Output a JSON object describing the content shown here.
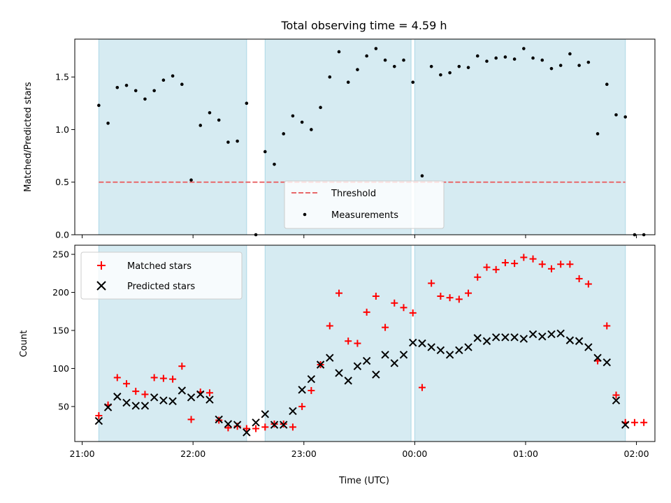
{
  "title": "Total observing time = 4.59 h",
  "colors": {
    "shade": "#add8e6",
    "threshold": "#e8686a",
    "measurements": "#000000",
    "matched": "#ff0000",
    "predicted": "#000000"
  },
  "shaded_intervals": [
    [
      "21:09",
      "22:29"
    ],
    [
      "22:39",
      "23:58"
    ],
    [
      "00:00",
      "01:54"
    ]
  ],
  "chart_data": [
    {
      "type": "scatter",
      "ylabel": "Matched/Predicted stars",
      "ylim": [
        0,
        1.86
      ],
      "yticks": [
        0.0,
        0.5,
        1.0,
        1.5
      ],
      "legend": {
        "placement": "lower-center",
        "entries": [
          "Threshold",
          "Measurements"
        ]
      },
      "threshold": {
        "name": "Threshold",
        "value": 0.5,
        "x_range": [
          "21:09",
          "01:54"
        ]
      },
      "series": [
        {
          "name": "Measurements",
          "x": [
            "21:09",
            "21:14",
            "21:19",
            "21:24",
            "21:29",
            "21:34",
            "21:39",
            "21:44",
            "21:49",
            "21:54",
            "21:59",
            "22:04",
            "22:09",
            "22:14",
            "22:19",
            "22:24",
            "22:29",
            "22:34",
            "22:39",
            "22:44",
            "22:49",
            "22:54",
            "22:59",
            "23:04",
            "23:09",
            "23:14",
            "23:19",
            "23:24",
            "23:29",
            "23:34",
            "23:39",
            "23:44",
            "23:49",
            "23:54",
            "23:59",
            "00:04",
            "00:09",
            "00:14",
            "00:19",
            "00:24",
            "00:29",
            "00:34",
            "00:39",
            "00:44",
            "00:49",
            "00:54",
            "00:59",
            "01:04",
            "01:09",
            "01:14",
            "01:19",
            "01:24",
            "01:29",
            "01:34",
            "01:39",
            "01:44",
            "01:49",
            "01:54",
            "01:59",
            "02:04"
          ],
          "y": [
            1.23,
            1.06,
            1.4,
            1.42,
            1.37,
            1.29,
            1.37,
            1.47,
            1.51,
            1.43,
            0.52,
            1.04,
            1.16,
            1.09,
            0.88,
            0.89,
            1.25,
            0.0,
            0.79,
            0.67,
            0.96,
            1.13,
            1.07,
            1.0,
            1.21,
            1.5,
            1.74,
            1.45,
            1.57,
            1.7,
            1.77,
            1.66,
            1.6,
            1.66,
            1.45,
            0.56,
            1.6,
            1.52,
            1.54,
            1.6,
            1.59,
            1.7,
            1.65,
            1.68,
            1.69,
            1.67,
            1.77,
            1.68,
            1.66,
            1.58,
            1.61,
            1.72,
            1.61,
            1.64,
            0.96,
            1.43,
            1.14,
            1.12,
            0.0,
            0.0
          ]
        }
      ]
    },
    {
      "type": "scatter",
      "xlabel": "Time (UTC)",
      "ylabel": "Count",
      "ylim": [
        4,
        262
      ],
      "yticks": [
        50,
        100,
        150,
        200,
        250
      ],
      "xlim": [
        "20:56",
        "02:10"
      ],
      "xticks": [
        "21:00",
        "22:00",
        "23:00",
        "00:00",
        "01:00",
        "02:00"
      ],
      "legend": {
        "placement": "upper-left",
        "entries": [
          "Matched stars",
          "Predicted stars"
        ]
      },
      "series": [
        {
          "name": "Matched stars",
          "marker": "+",
          "x": [
            "21:09",
            "21:14",
            "21:19",
            "21:24",
            "21:29",
            "21:34",
            "21:39",
            "21:44",
            "21:49",
            "21:54",
            "21:59",
            "22:04",
            "22:09",
            "22:14",
            "22:19",
            "22:24",
            "22:29",
            "22:34",
            "22:39",
            "22:44",
            "22:49",
            "22:54",
            "22:59",
            "23:04",
            "23:09",
            "23:14",
            "23:19",
            "23:24",
            "23:29",
            "23:34",
            "23:39",
            "23:44",
            "23:49",
            "23:54",
            "23:59",
            "00:04",
            "00:09",
            "00:14",
            "00:19",
            "00:24",
            "00:29",
            "00:34",
            "00:39",
            "00:44",
            "00:49",
            "00:54",
            "00:59",
            "01:04",
            "01:09",
            "01:14",
            "01:19",
            "01:24",
            "01:29",
            "01:34",
            "01:39",
            "01:44",
            "01:49",
            "01:54",
            "01:59",
            "02:04"
          ],
          "y": [
            38,
            52,
            88,
            80,
            70,
            66,
            88,
            87,
            86,
            103,
            33,
            69,
            68,
            32,
            22,
            24,
            21,
            21,
            23,
            27,
            27,
            23,
            50,
            71,
            105,
            156,
            199,
            136,
            133,
            174,
            195,
            154,
            186,
            180,
            173,
            75,
            212,
            195,
            193,
            191,
            199,
            220,
            233,
            230,
            239,
            238,
            246,
            244,
            237,
            231,
            237,
            237,
            218,
            211,
            110,
            156,
            65,
            29,
            29,
            29
          ]
        },
        {
          "name": "Predicted stars",
          "marker": "x",
          "x": [
            "21:09",
            "21:14",
            "21:19",
            "21:24",
            "21:29",
            "21:34",
            "21:39",
            "21:44",
            "21:49",
            "21:54",
            "21:59",
            "22:04",
            "22:09",
            "22:14",
            "22:19",
            "22:24",
            "22:29",
            "22:34",
            "22:39",
            "22:44",
            "22:49",
            "22:54",
            "22:59",
            "23:04",
            "23:09",
            "23:14",
            "23:19",
            "23:24",
            "23:29",
            "23:34",
            "23:39",
            "23:44",
            "23:49",
            "23:54",
            "23:59",
            "00:04",
            "00:09",
            "00:14",
            "00:19",
            "00:24",
            "00:29",
            "00:34",
            "00:39",
            "00:44",
            "00:49",
            "00:54",
            "00:59",
            "01:04",
            "01:09",
            "01:14",
            "01:19",
            "01:24",
            "01:29",
            "01:34",
            "01:39",
            "01:44",
            "01:49",
            "01:54"
          ],
          "y": [
            31,
            49,
            63,
            55,
            51,
            51,
            62,
            58,
            57,
            71,
            62,
            66,
            59,
            33,
            27,
            26,
            16,
            29,
            40,
            26,
            26,
            44,
            72,
            86,
            105,
            114,
            94,
            84,
            103,
            110,
            92,
            118,
            107,
            118,
            134,
            133,
            128,
            124,
            118,
            124,
            128,
            140,
            136,
            141,
            141,
            141,
            139,
            145,
            142,
            145,
            146,
            137,
            136,
            128,
            114,
            108,
            58,
            26
          ]
        }
      ]
    }
  ]
}
